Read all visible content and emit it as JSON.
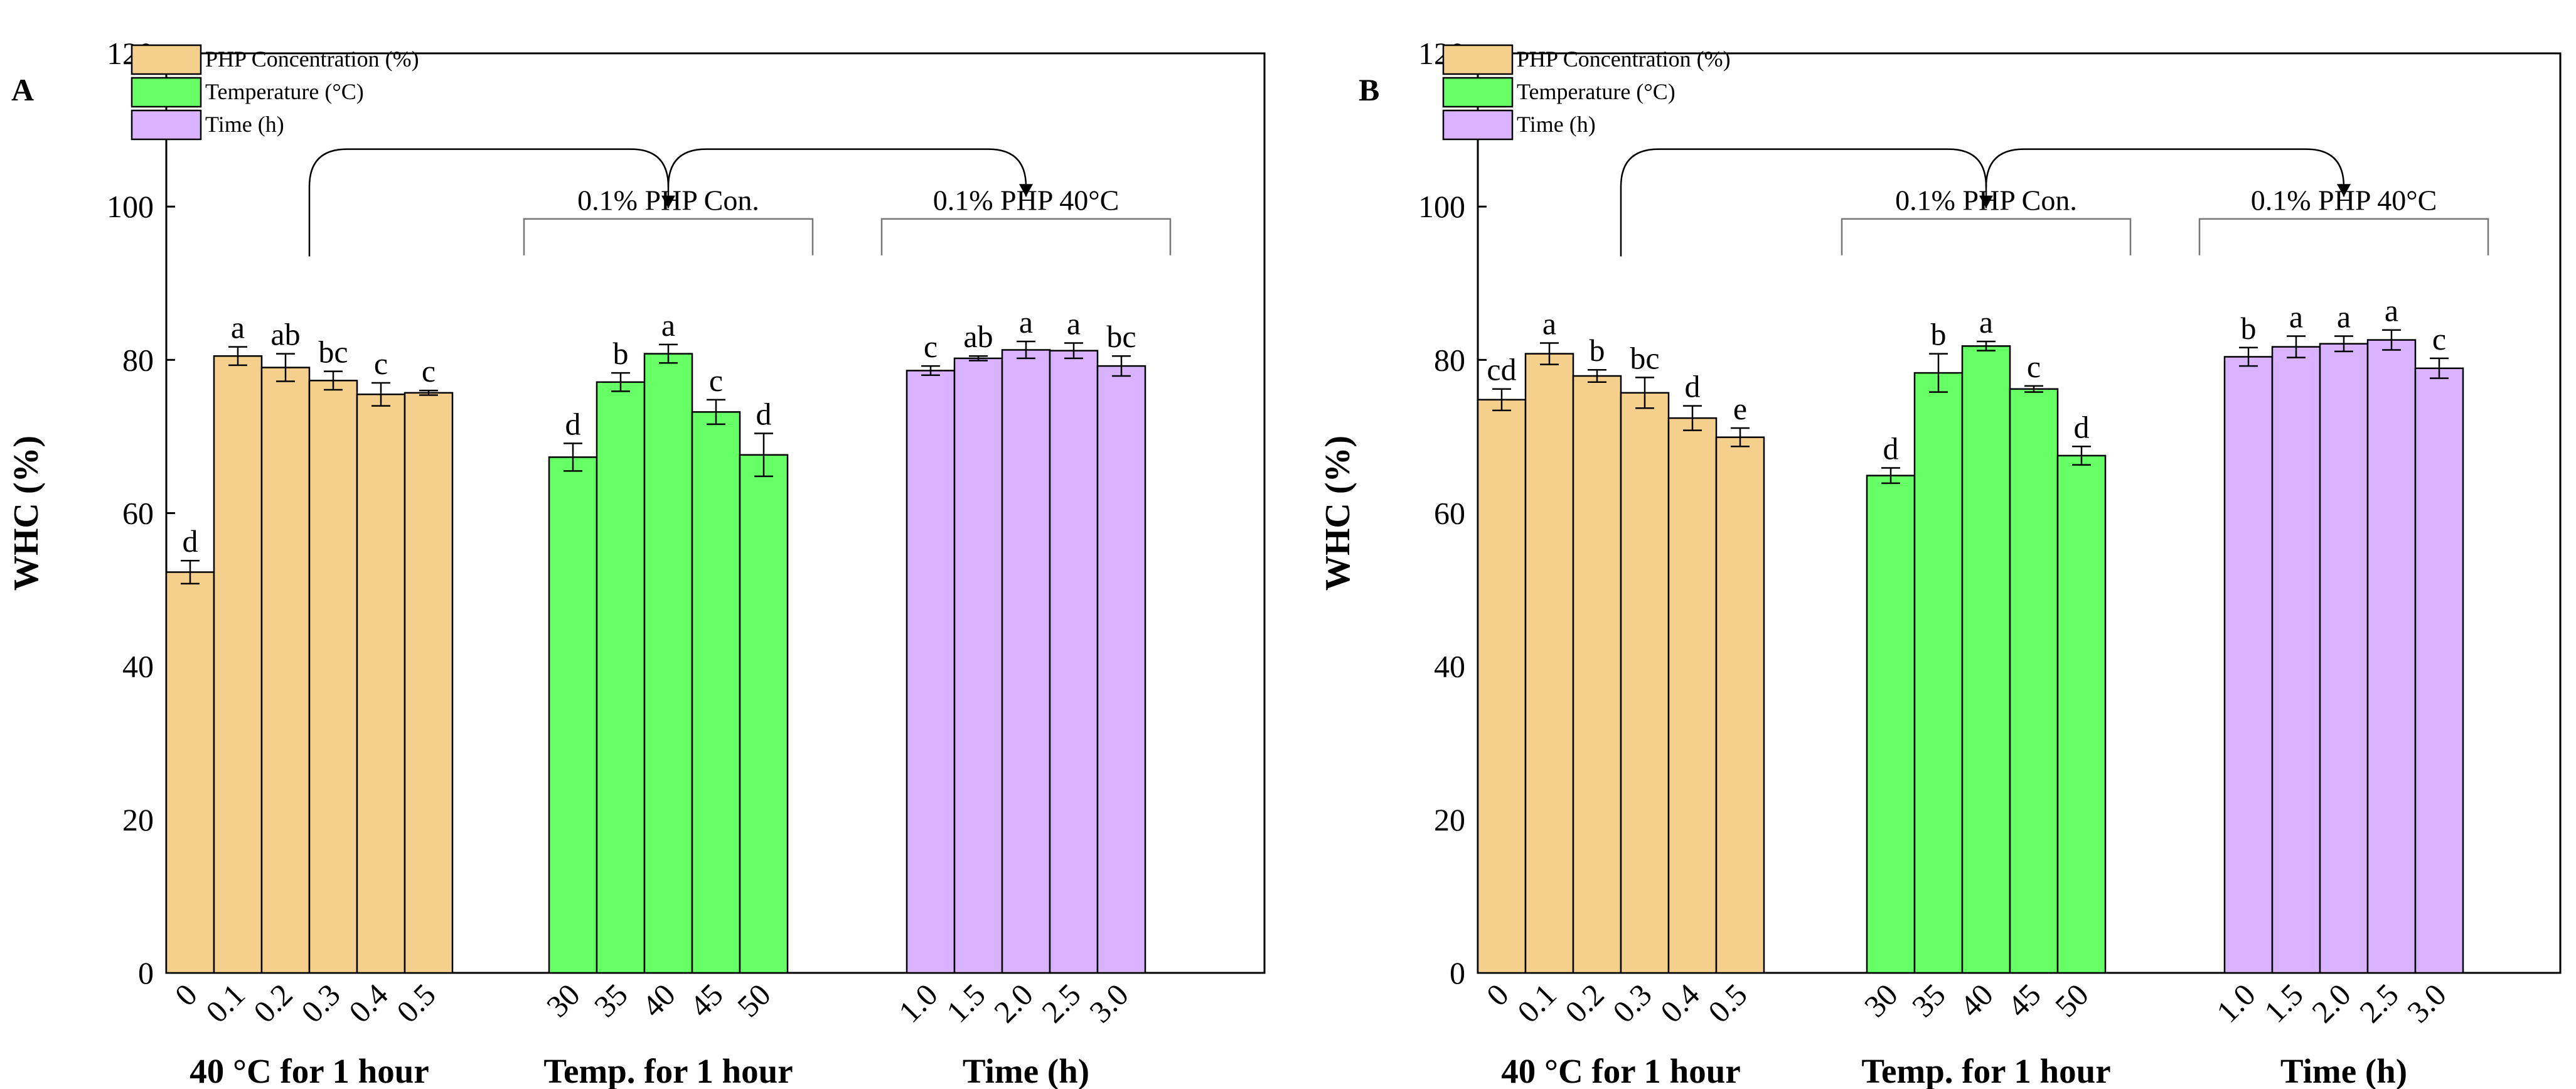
{
  "chart_data": [
    {
      "panel_label": "A",
      "type": "bar",
      "ylabel": "WHC (%)",
      "ylim": [
        0,
        120
      ],
      "yticks": [
        0,
        20,
        40,
        60,
        80,
        100,
        120
      ],
      "legend_placement": "top-left",
      "legend": [
        {
          "label": "PHP Concentration (%)",
          "color": "#F5D08C"
        },
        {
          "label": "Temperature (°C)",
          "color": "#66FF66"
        },
        {
          "label": "Time (h)",
          "color": "#D9B3FF"
        }
      ],
      "groups": [
        {
          "xlabel": "40 °C for 1 hour",
          "color": "#F5D08C",
          "bracket_label": "",
          "categories": [
            "0",
            "0.1",
            "0.2",
            "0.3",
            "0.4",
            "0.5"
          ],
          "values": [
            52.3,
            80.5,
            79.0,
            77.3,
            75.5,
            75.7
          ],
          "errors": [
            1.5,
            1.2,
            1.8,
            1.2,
            1.5,
            0.3
          ],
          "letters": [
            "d",
            "a",
            "ab",
            "bc",
            "c",
            "c"
          ]
        },
        {
          "xlabel": "Temp. for 1 hour",
          "color": "#66FF66",
          "bracket_label": "0.1% PHP Con.",
          "categories": [
            "30",
            "35",
            "40",
            "45",
            "50"
          ],
          "values": [
            67.3,
            77.1,
            80.8,
            73.2,
            67.6
          ],
          "errors": [
            1.8,
            1.2,
            1.2,
            1.6,
            2.8
          ],
          "letters": [
            "d",
            "b",
            "a",
            "c",
            "d"
          ]
        },
        {
          "xlabel": "Time (h)",
          "color": "#D9B3FF",
          "bracket_label": "0.1% PHP 40°C",
          "categories": [
            "1.0",
            "1.5",
            "2.0",
            "2.5",
            "3.0"
          ],
          "values": [
            78.6,
            80.2,
            81.3,
            81.2,
            79.2
          ],
          "errors": [
            0.6,
            0.3,
            1.1,
            1.0,
            1.3
          ],
          "letters": [
            "c",
            "ab",
            "a",
            "a",
            "bc"
          ]
        }
      ]
    },
    {
      "panel_label": "B",
      "type": "bar",
      "ylabel": "WHC (%)",
      "ylim": [
        0,
        120
      ],
      "yticks": [
        0,
        20,
        40,
        60,
        80,
        100,
        120
      ],
      "legend_placement": "top-left",
      "legend": [
        {
          "label": "PHP Concentration (%)",
          "color": "#F5D08C"
        },
        {
          "label": "Temperature (°C)",
          "color": "#66FF66"
        },
        {
          "label": "Time (h)",
          "color": "#D9B3FF"
        }
      ],
      "groups": [
        {
          "xlabel": "40 °C for 1 hour",
          "color": "#F5D08C",
          "bracket_label": "",
          "categories": [
            "0",
            "0.1",
            "0.2",
            "0.3",
            "0.4",
            "0.5"
          ],
          "values": [
            74.8,
            80.8,
            77.9,
            75.7,
            72.4,
            69.9
          ],
          "errors": [
            1.4,
            1.4,
            0.8,
            2.0,
            1.6,
            1.2
          ],
          "letters": [
            "cd",
            "a",
            "b",
            "bc",
            "d",
            "e"
          ]
        },
        {
          "xlabel": "Temp. for 1 hour",
          "color": "#66FF66",
          "bracket_label": "0.1% PHP Con.",
          "categories": [
            "30",
            "35",
            "40",
            "45",
            "50"
          ],
          "values": [
            64.9,
            78.3,
            81.8,
            76.2,
            67.5
          ],
          "errors": [
            1.0,
            2.5,
            0.6,
            0.4,
            1.2
          ],
          "letters": [
            "d",
            "b",
            "a",
            "c",
            "d"
          ]
        },
        {
          "xlabel": "Time (h)",
          "color": "#D9B3FF",
          "bracket_label": "0.1% PHP 40°C",
          "categories": [
            "1.0",
            "1.5",
            "2.0",
            "2.5",
            "3.0"
          ],
          "values": [
            80.4,
            81.7,
            82.1,
            82.6,
            78.9
          ],
          "errors": [
            1.2,
            1.4,
            1.0,
            1.3,
            1.3
          ],
          "letters": [
            "b",
            "a",
            "a",
            "a",
            "c"
          ]
        }
      ]
    }
  ]
}
